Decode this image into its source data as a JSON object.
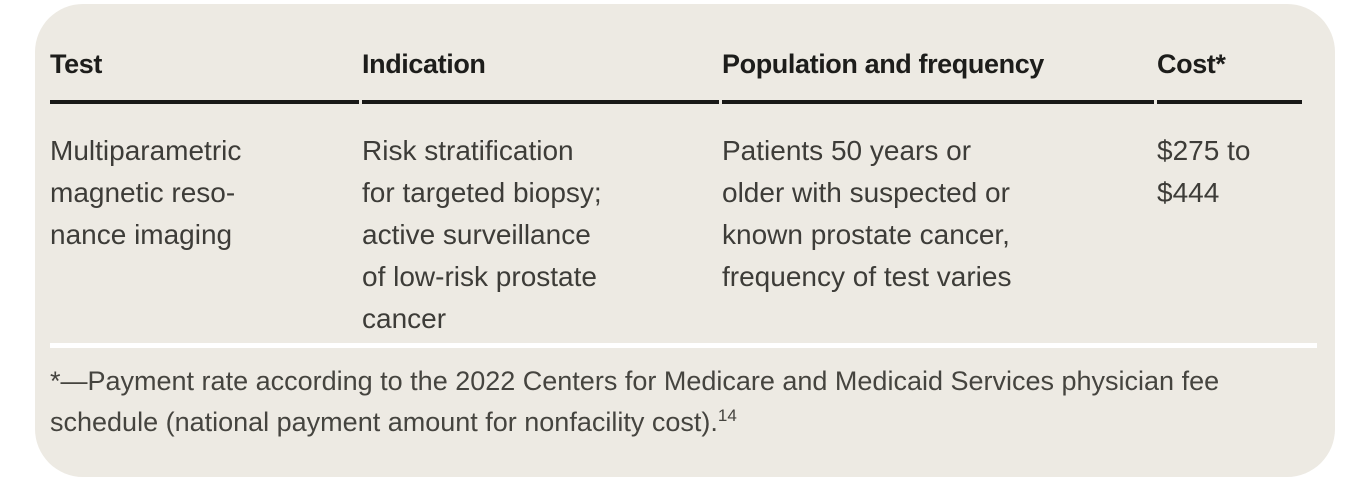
{
  "colors": {
    "page_background": "#ffffff",
    "card_background": "#edeae3",
    "header_text": "#1d1d1b",
    "body_text": "#3d3c38",
    "footnote_text": "#45443f",
    "header_rule": "#191917",
    "footnote_rule": "#ffffff"
  },
  "table": {
    "columns": [
      {
        "label": "Test"
      },
      {
        "label": "Indication"
      },
      {
        "label": "Population and frequency"
      },
      {
        "label": "Cost*"
      }
    ],
    "rows": [
      {
        "cells": [
          "Multiparametric\nmagnetic reso-\nnance imaging",
          "Risk stratification\nfor targeted biopsy;\nactive surveillance\nof low-risk prostate\ncancer",
          "Patients 50 years or\nolder with suspected or\nknown prostate cancer,\nfrequency of test varies",
          "$275 to\n$444"
        ]
      }
    ],
    "footnote": {
      "text": "*—Payment rate according to the 2022 Centers for Medicare and Medicaid Services physician fee schedule (national payment amount for nonfacility cost).",
      "reference_number": "14"
    }
  }
}
